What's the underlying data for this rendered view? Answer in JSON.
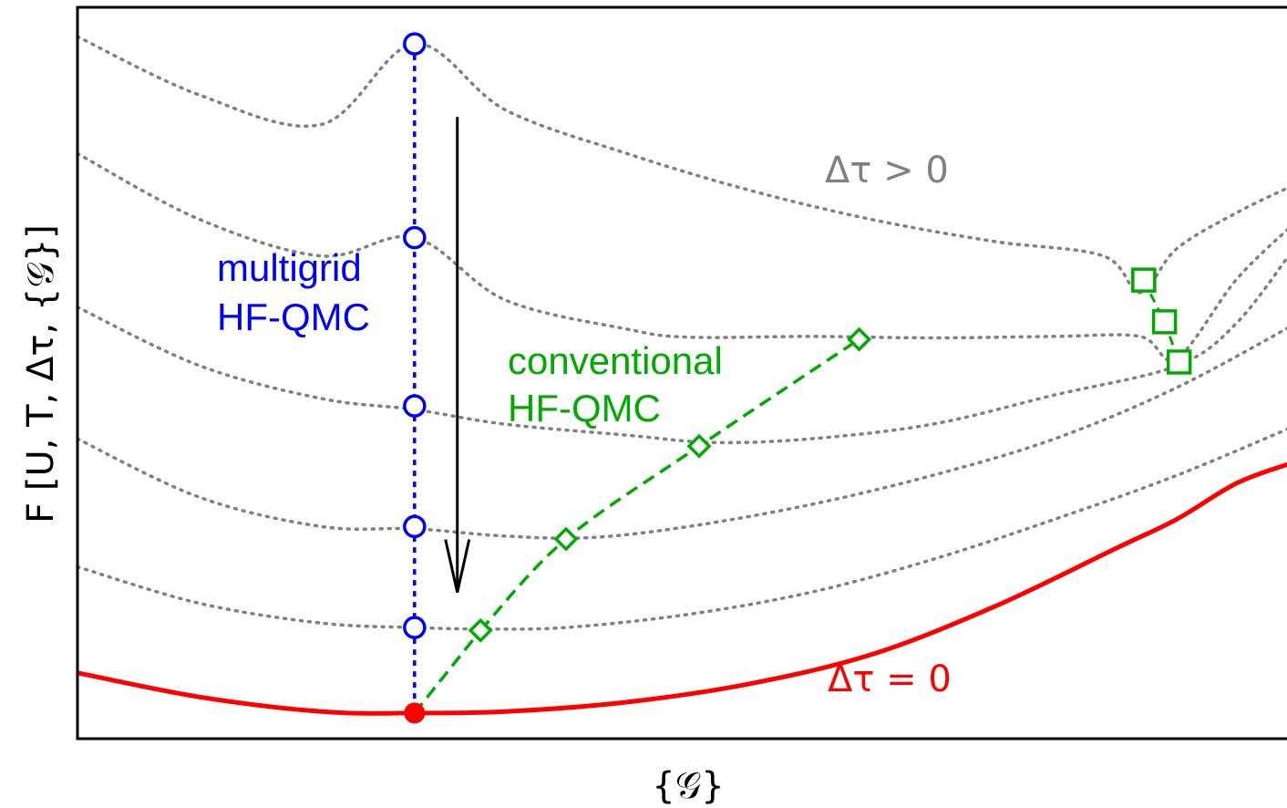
{
  "chart_data": {
    "type": "line",
    "xlabel": "{𝒢}",
    "ylabel": "F [U, T, Δτ, {𝒢}]",
    "xlim": [
      0,
      1
    ],
    "ylim": [
      0,
      1
    ],
    "grid": false,
    "colors": {
      "limit": "#ff0000",
      "dtau_curves": "#808080",
      "multigrid": "#0000ff",
      "conventional": "#00aa00",
      "arrow": "#000000"
    },
    "annotations": {
      "dtau_positive": "Δτ > 0",
      "dtau_zero": "Δτ = 0",
      "multigrid_line1": "multigrid",
      "multigrid_line2": "HF-QMC",
      "conventional_line1": "conventional",
      "conventional_line2": "HF-QMC"
    },
    "series": [
      {
        "role": "limit",
        "style": "solid",
        "x": [
          0.0,
          0.1,
          0.2,
          0.276,
          0.35,
          0.45,
          0.55,
          0.65,
          0.75,
          0.85,
          0.9,
          0.95,
          1.0
        ],
        "y": [
          0.09,
          0.057,
          0.037,
          0.035,
          0.037,
          0.05,
          0.075,
          0.115,
          0.18,
          0.26,
          0.3,
          0.35,
          0.38
        ]
      },
      {
        "role": "dtau_curve",
        "style": "dotted",
        "x": [
          0.0,
          0.1,
          0.2,
          0.276,
          0.33,
          0.4,
          0.5,
          0.6,
          0.7,
          0.8,
          0.9,
          1.0
        ],
        "y": [
          0.235,
          0.185,
          0.158,
          0.152,
          0.15,
          0.152,
          0.17,
          0.2,
          0.245,
          0.3,
          0.36,
          0.43
        ]
      },
      {
        "role": "dtau_curve",
        "style": "dotted",
        "x": [
          0.0,
          0.1,
          0.2,
          0.276,
          0.35,
          0.42,
          0.5,
          0.6,
          0.7,
          0.8,
          0.9,
          1.0
        ],
        "y": [
          0.41,
          0.33,
          0.29,
          0.287,
          0.277,
          0.275,
          0.29,
          0.32,
          0.36,
          0.41,
          0.48,
          0.57
        ]
      },
      {
        "role": "dtau_curve",
        "style": "dotted",
        "x": [
          0.0,
          0.1,
          0.2,
          0.276,
          0.35,
          0.45,
          0.52,
          0.6,
          0.7,
          0.8,
          0.9,
          0.95,
          1.0
        ],
        "y": [
          0.59,
          0.51,
          0.465,
          0.45,
          0.43,
          0.415,
          0.405,
          0.41,
          0.43,
          0.47,
          0.51,
          0.57,
          0.68
        ]
      },
      {
        "role": "dtau_curve",
        "style": "dotted",
        "x": [
          0.0,
          0.1,
          0.2,
          0.276,
          0.35,
          0.45,
          0.5,
          0.6,
          0.7,
          0.8,
          0.87,
          0.9,
          0.95,
          1.0
        ],
        "y": [
          0.8,
          0.71,
          0.66,
          0.685,
          0.6,
          0.56,
          0.549,
          0.55,
          0.548,
          0.55,
          0.55,
          0.52,
          0.63,
          0.71
        ]
      },
      {
        "role": "dtau_curve",
        "style": "dotted",
        "x": [
          0.0,
          0.1,
          0.2,
          0.276,
          0.35,
          0.45,
          0.55,
          0.65,
          0.75,
          0.84,
          0.87,
          0.9,
          0.95,
          1.0
        ],
        "y": [
          0.96,
          0.88,
          0.84,
          0.95,
          0.86,
          0.8,
          0.75,
          0.71,
          0.68,
          0.66,
          0.61,
          0.67,
          0.72,
          0.76
        ]
      },
      {
        "role": "multigrid",
        "style": "dotted",
        "marker": "circle",
        "x": [
          0.276,
          0.276,
          0.276,
          0.276,
          0.276
        ],
        "y": [
          0.95,
          0.685,
          0.455,
          0.29,
          0.152
        ]
      },
      {
        "role": "multigrid_stem",
        "style": "dotted",
        "marker": "none",
        "x": [
          0.276,
          0.276
        ],
        "y": [
          0.035,
          0.152
        ]
      },
      {
        "role": "conventional",
        "style": "dashed",
        "marker": "diamond",
        "x": [
          0.33,
          0.4,
          0.509,
          0.64
        ],
        "y": [
          0.148,
          0.273,
          0.4,
          0.546
        ]
      },
      {
        "role": "conventional_stem",
        "style": "dashed",
        "marker": "none",
        "x": [
          0.276,
          0.33
        ],
        "y": [
          0.035,
          0.148
        ]
      },
      {
        "role": "conventional_squares",
        "style": "dashed",
        "marker": "square",
        "x": [
          0.873,
          0.89,
          0.902
        ],
        "y": [
          0.627,
          0.57,
          0.515
        ]
      },
      {
        "role": "optimum",
        "style": "none",
        "marker": "filled-circle",
        "x": [
          0.276
        ],
        "y": [
          0.035
        ]
      }
    ],
    "arrow": {
      "x": 0.311,
      "y_from": 0.85,
      "y_to": 0.2
    }
  }
}
